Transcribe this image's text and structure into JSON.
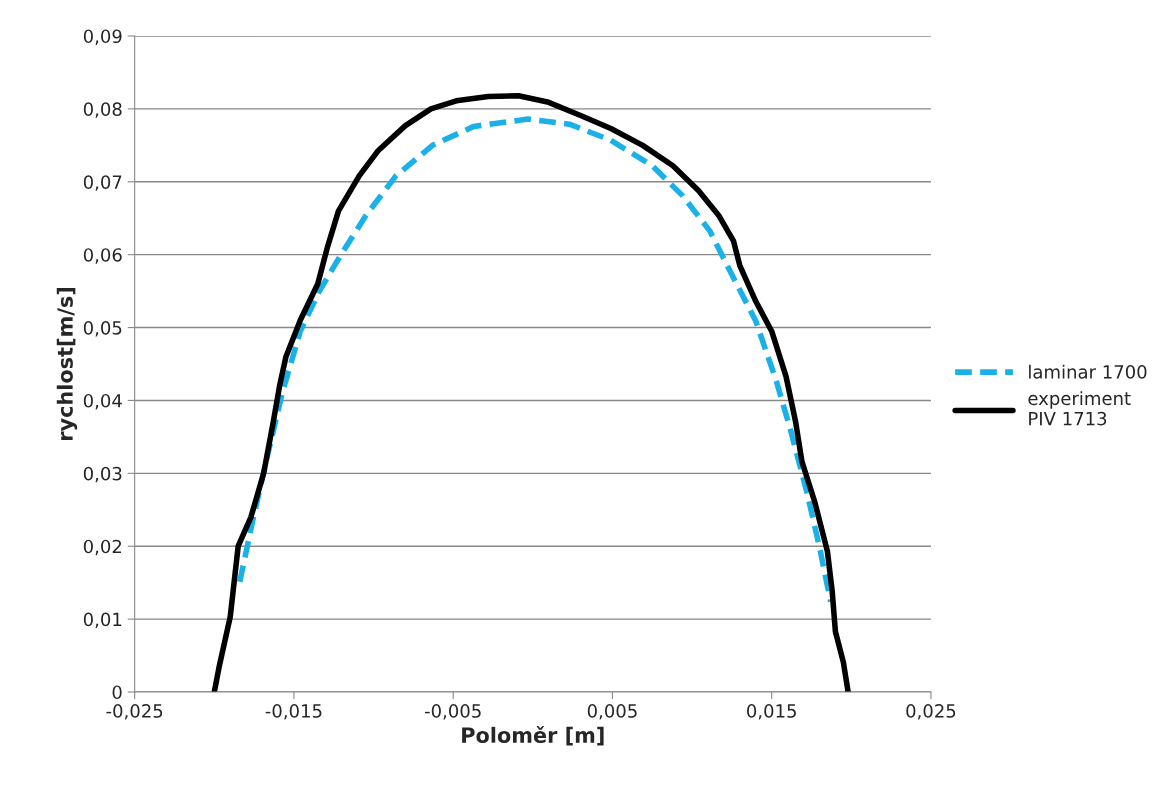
{
  "chart_data": {
    "type": "line",
    "xlabel": "Poloměr [m]",
    "ylabel": "rychlost[m/s]",
    "xlim": [
      -0.025,
      0.025
    ],
    "xticks": [
      {
        "value": -0.025,
        "label": "-0,025"
      },
      {
        "value": -0.015,
        "label": "-0,015"
      },
      {
        "value": -0.005,
        "label": "-0,005"
      },
      {
        "value": 0.005,
        "label": "0,005"
      },
      {
        "value": 0.015,
        "label": "0,015"
      },
      {
        "value": 0.025,
        "label": "0,025"
      }
    ],
    "ylim": [
      0,
      0.09
    ],
    "yticks": [
      {
        "value": 0,
        "label": "0"
      },
      {
        "value": 0.01,
        "label": "0,01"
      },
      {
        "value": 0.02,
        "label": "0,02"
      },
      {
        "value": 0.03,
        "label": "0,03"
      },
      {
        "value": 0.04,
        "label": "0,04"
      },
      {
        "value": 0.05,
        "label": "0,05"
      },
      {
        "value": 0.06,
        "label": "0,06"
      },
      {
        "value": 0.07,
        "label": "0,07"
      },
      {
        "value": 0.08,
        "label": "0,08"
      },
      {
        "value": 0.09,
        "label": "0,09"
      }
    ],
    "grid": "y",
    "legend": "right",
    "series": [
      {
        "name": "laminar 1700",
        "color": "#1ab0e8",
        "line_style": "dashed",
        "x": [
          -0.0184,
          -0.0176,
          -0.0166,
          -0.0157,
          -0.0146,
          -0.0134,
          -0.0121,
          -0.0105,
          -0.0086,
          -0.0063,
          -0.0037,
          -0.0003,
          0.0023,
          0.0049,
          0.0075,
          0.0094,
          0.0111,
          0.0127,
          0.014,
          0.0153,
          0.0162,
          0.0172,
          0.018,
          0.0187
        ],
        "values": [
          0.0151,
          0.0234,
          0.033,
          0.0413,
          0.0495,
          0.055,
          0.0598,
          0.0653,
          0.0708,
          0.075,
          0.0776,
          0.0786,
          0.0779,
          0.0757,
          0.0722,
          0.0681,
          0.0633,
          0.0564,
          0.0509,
          0.0426,
          0.0358,
          0.0275,
          0.0199,
          0.0124
        ]
      },
      {
        "name": "experiment\nPIV 1713",
        "color": "#000000",
        "line_style": "solid",
        "x": [
          -0.02,
          -0.0197,
          -0.019,
          -0.0185,
          -0.0177,
          -0.0169,
          -0.0163,
          -0.0159,
          -0.0155,
          -0.0146,
          -0.0135,
          -0.0129,
          -0.0122,
          -0.0109,
          -0.0097,
          -0.008,
          -0.0064,
          -0.0048,
          -0.0028,
          -0.0009,
          0.001,
          0.003,
          0.0049,
          0.0069,
          0.0088,
          0.0104,
          0.0117,
          0.0126,
          0.013,
          0.014,
          0.015,
          0.0159,
          0.0165,
          0.0169,
          0.0177,
          0.0185,
          0.0188,
          0.019,
          0.0195,
          0.0198
        ],
        "values": [
          0,
          0.0034,
          0.0103,
          0.02,
          0.024,
          0.03,
          0.037,
          0.042,
          0.046,
          0.051,
          0.056,
          0.061,
          0.066,
          0.0708,
          0.0743,
          0.0777,
          0.08,
          0.0811,
          0.0817,
          0.0818,
          0.0809,
          0.0791,
          0.0773,
          0.075,
          0.0722,
          0.0688,
          0.0653,
          0.0619,
          0.0585,
          0.0536,
          0.0495,
          0.0433,
          0.0371,
          0.0316,
          0.0261,
          0.0193,
          0.0138,
          0.0083,
          0.0041,
          0
        ]
      }
    ]
  }
}
